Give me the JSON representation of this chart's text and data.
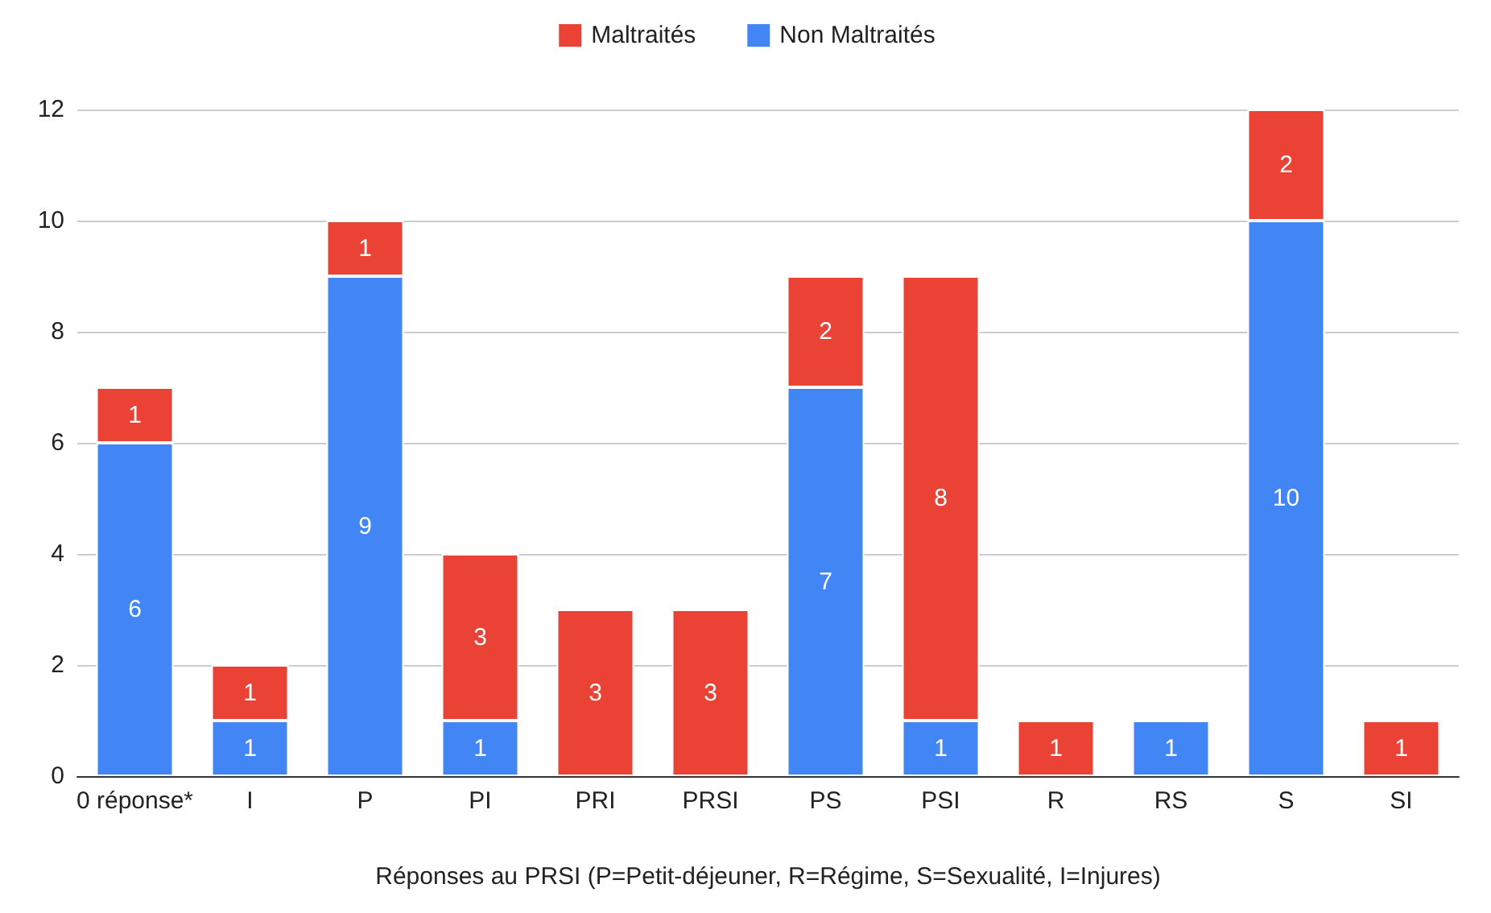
{
  "chart_data": {
    "type": "bar",
    "stacked": true,
    "xlabel": "Réponses au PRSI (P=Petit-déjeuner, R=Régime, S=Sexualité, I=Injures)",
    "categories": [
      "0 réponse*",
      "I",
      "P",
      "PI",
      "PRI",
      "PRSI",
      "PS",
      "PSI",
      "R",
      "RS",
      "S",
      "SI"
    ],
    "series": [
      {
        "name": "Non Maltraités",
        "color": "#4285f4",
        "values": [
          6,
          1,
          9,
          1,
          null,
          null,
          7,
          1,
          null,
          1,
          10,
          null
        ]
      },
      {
        "name": "Maltraités",
        "color": "#ea4335",
        "values": [
          1,
          1,
          1,
          3,
          3,
          3,
          2,
          8,
          1,
          null,
          2,
          1
        ]
      }
    ],
    "ylim": [
      0,
      12
    ],
    "yticks": [
      0,
      2,
      4,
      6,
      8,
      10,
      12
    ],
    "grid": "y",
    "legend": "top",
    "data_labels": true
  }
}
